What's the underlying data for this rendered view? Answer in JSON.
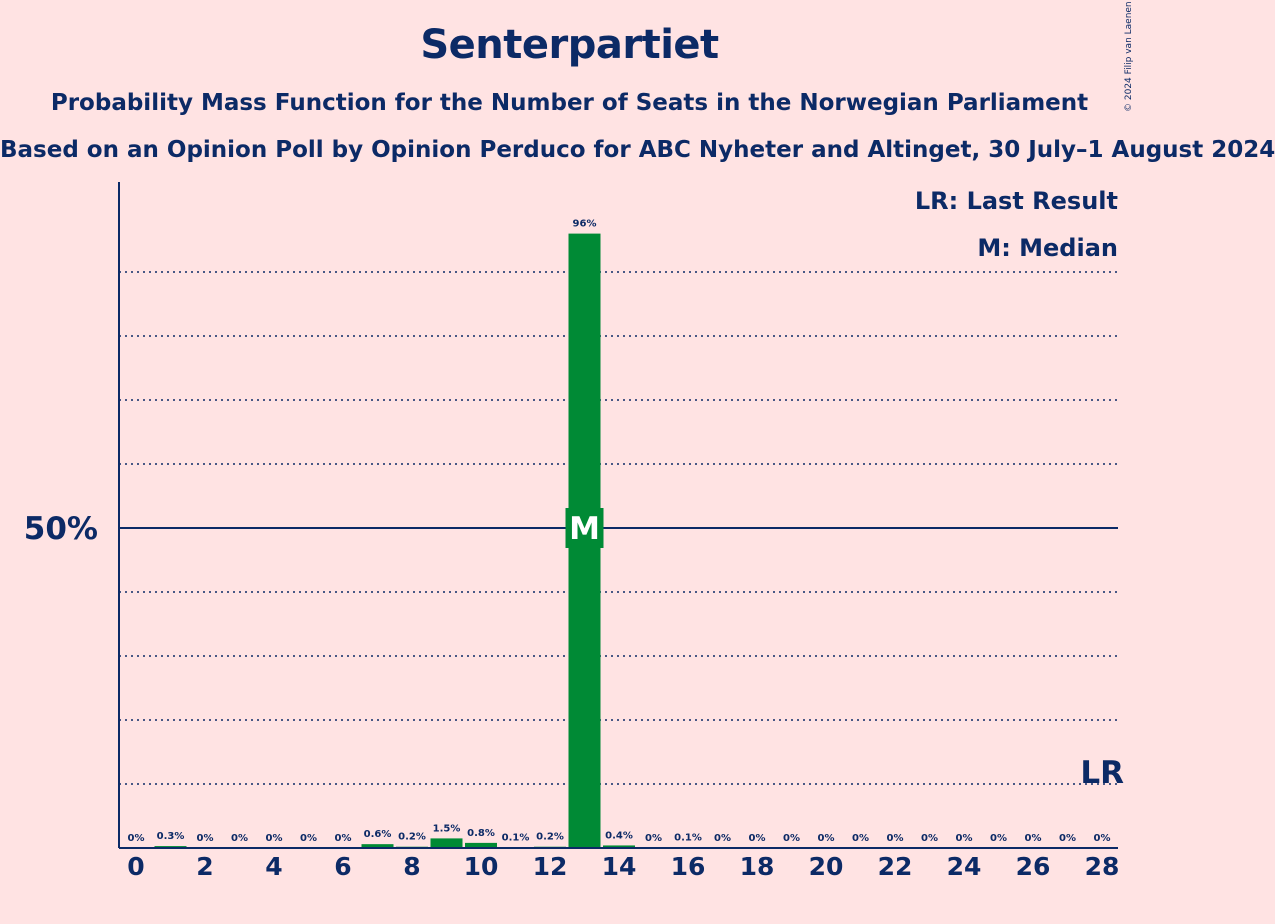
{
  "chart_data": {
    "type": "bar",
    "title": "Senterpartiet",
    "subtitle": "Probability Mass Function for the Number of Seats in the Norwegian Parliament",
    "caption": "Based on an Opinion Poll by Opinion Perduco for ABC Nyheter and Altinget, 30 July–1 August 2024",
    "copyright": "© 2024 Filip van Laenen",
    "categories": [
      0,
      1,
      2,
      3,
      4,
      5,
      6,
      7,
      8,
      9,
      10,
      11,
      12,
      13,
      14,
      15,
      16,
      17,
      18,
      19,
      20,
      21,
      22,
      23,
      24,
      25,
      26,
      27,
      28
    ],
    "values": [
      0,
      0.3,
      0,
      0,
      0,
      0,
      0,
      0.6,
      0.2,
      1.5,
      0.8,
      0.1,
      0.2,
      96,
      0.4,
      0,
      0.1,
      0,
      0,
      0,
      0,
      0,
      0,
      0,
      0,
      0,
      0,
      0,
      0
    ],
    "value_labels": [
      "0%",
      "0.3%",
      "0%",
      "0%",
      "0%",
      "0%",
      "0%",
      "0.6%",
      "0.2%",
      "1.5%",
      "0.8%",
      "0.1%",
      "0.2%",
      "96%",
      "0.4%",
      "0%",
      "0.1%",
      "0%",
      "0%",
      "0%",
      "0%",
      "0%",
      "0%",
      "0%",
      "0%",
      "0%",
      "0%",
      "0%",
      "0%"
    ],
    "x_tick_labels": [
      "0",
      "2",
      "4",
      "6",
      "8",
      "10",
      "12",
      "14",
      "16",
      "18",
      "20",
      "22",
      "24",
      "26",
      "28"
    ],
    "y_tick_labels": [
      "50%"
    ],
    "ylim": [
      0,
      100
    ],
    "grid": true,
    "median_seat": 13,
    "median_marker": "M",
    "last_result_seat": 28,
    "last_result_marker": "LR",
    "legend": [
      "LR: Last Result",
      "M: Median"
    ],
    "bar_color": "#008A35"
  }
}
